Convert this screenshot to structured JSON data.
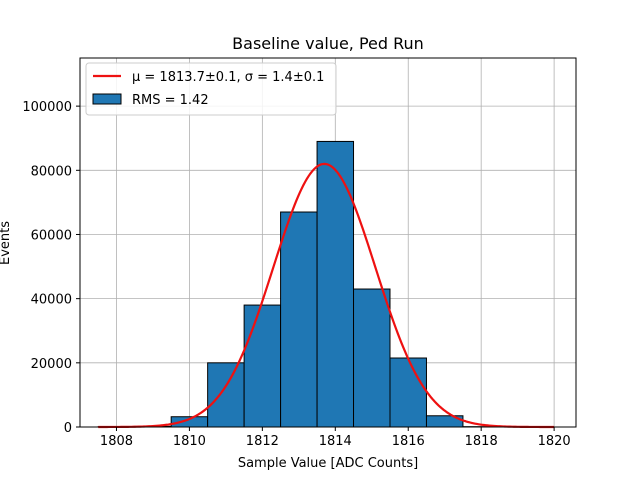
{
  "chart_data": {
    "type": "bar",
    "title": "Baseline value, Ped Run",
    "xlabel": "Sample Value [ADC Counts]",
    "ylabel": "Events",
    "xlim": [
      1807.0,
      1820.6
    ],
    "ylim": [
      0,
      115000
    ],
    "xticks": [
      1808,
      1810,
      1812,
      1814,
      1816,
      1818,
      1820
    ],
    "xtick_labels": [
      "1808",
      "1810",
      "1812",
      "1814",
      "1816",
      "1818",
      "1820"
    ],
    "yticks": [
      0,
      20000,
      40000,
      60000,
      80000,
      100000
    ],
    "ytick_labels": [
      "0",
      "20000",
      "40000",
      "60000",
      "80000",
      "100000"
    ],
    "grid": true,
    "legend_position": "top-left",
    "histogram": {
      "name": "RMS = 1.42",
      "color": "#1f77b4",
      "edgecolor": "#000000",
      "bins": [
        {
          "x0": 1807.5,
          "x1": 1808.5,
          "count": 100
        },
        {
          "x0": 1808.5,
          "x1": 1809.5,
          "count": 200
        },
        {
          "x0": 1809.5,
          "x1": 1810.5,
          "count": 3200
        },
        {
          "x0": 1810.5,
          "x1": 1811.5,
          "count": 20000
        },
        {
          "x0": 1811.5,
          "x1": 1812.5,
          "count": 38000
        },
        {
          "x0": 1812.5,
          "x1": 1813.5,
          "count": 67000
        },
        {
          "x0": 1813.5,
          "x1": 1814.5,
          "count": 89000
        },
        {
          "x0": 1814.5,
          "x1": 1815.5,
          "count": 43000
        },
        {
          "x0": 1815.5,
          "x1": 1816.5,
          "count": 21500
        },
        {
          "x0": 1816.5,
          "x1": 1817.5,
          "count": 3500
        },
        {
          "x0": 1817.5,
          "x1": 1818.5,
          "count": 100
        },
        {
          "x0": 1818.5,
          "x1": 1819.5,
          "count": 0
        },
        {
          "x0": 1819.5,
          "x1": 1820.5,
          "count": 0
        }
      ]
    },
    "fit": {
      "name": "μ = 1813.7±0.1, σ = 1.4±0.1",
      "color": "#ee1111",
      "mu": 1813.7,
      "sigma": 1.4,
      "amplitude": 82000,
      "x_range": [
        1807.5,
        1820.0
      ]
    }
  }
}
